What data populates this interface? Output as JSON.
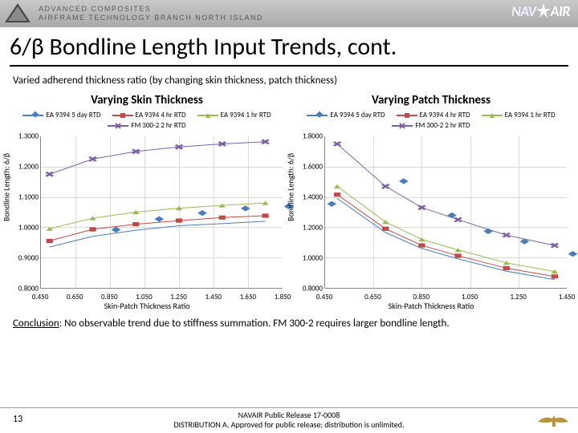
{
  "header": {
    "line1": "Advanced Composites",
    "line2": "Airframe Technology Branch North Island",
    "brand": "NAVAIR"
  },
  "title": "6/β Bondline Length Input Trends, cont.",
  "subtitle": "Varied adherend thickness ratio (by changing skin thickness, patch thickness)",
  "conclusion": {
    "label": "Conclusion",
    "text": "No observable trend due to stiffness summation. FM 300-2 requires larger bondline length."
  },
  "footer": {
    "page": "13",
    "release1": "NAVAIR Public Release 17-0008",
    "release2": "DISTRIBUTION A. Approved for public release; distribution is unlimited."
  },
  "series_meta": [
    {
      "key": "s1",
      "name": "EA 9394 5 day RTD",
      "color": "#4a7ebb",
      "marker": "diamond"
    },
    {
      "key": "s2",
      "name": "EA 9394 4 hr RTD",
      "color": "#be4b48",
      "marker": "square"
    },
    {
      "key": "s3",
      "name": "EA 9394 1 hr RTD",
      "color": "#98b954",
      "marker": "triangle"
    },
    {
      "key": "s4",
      "name": "FM 300-2 2 hr RTD",
      "color": "#7d60a0",
      "marker": "x"
    }
  ],
  "charts": [
    {
      "id": "left",
      "title": "Varying Skin Thickness",
      "xlabel": "Skin-Patch Thickness Ratio",
      "ylabel": "Bondline Length: 6/β",
      "xlim": [
        0.45,
        1.85
      ],
      "xstep": 0.2,
      "xfmt": 3,
      "ylim": [
        0.8,
        1.3
      ],
      "ystep": 0.1,
      "yfmt": 4,
      "x": [
        0.5,
        0.75,
        1.0,
        1.25,
        1.5,
        1.75
      ],
      "s1": [
        0.935,
        0.97,
        0.99,
        1.005,
        1.012,
        1.02
      ],
      "s2": [
        0.955,
        0.993,
        1.01,
        1.022,
        1.032,
        1.038
      ],
      "s3": [
        0.995,
        1.03,
        1.05,
        1.063,
        1.072,
        1.08
      ],
      "s4": [
        1.175,
        1.225,
        1.25,
        1.265,
        1.275,
        1.282
      ]
    },
    {
      "id": "right",
      "title": "Varying Patch Thickness",
      "xlabel": "Skin-Patch Thickness Ratio",
      "ylabel": "Bondline Length: 6/β",
      "xlim": [
        0.45,
        1.45
      ],
      "xstep": 0.2,
      "xfmt": 3,
      "ylim": [
        0.8,
        1.8
      ],
      "ystep": 0.2,
      "yfmt": 4,
      "x": [
        0.5,
        0.7,
        0.85,
        1.0,
        1.2,
        1.4
      ],
      "s1": [
        1.39,
        1.165,
        1.06,
        0.992,
        0.91,
        0.855
      ],
      "s2": [
        1.415,
        1.19,
        1.08,
        1.012,
        0.93,
        0.875
      ],
      "s3": [
        1.47,
        1.235,
        1.12,
        1.05,
        0.965,
        0.908
      ],
      "s4": [
        1.75,
        1.47,
        1.33,
        1.25,
        1.148,
        1.08
      ]
    }
  ]
}
